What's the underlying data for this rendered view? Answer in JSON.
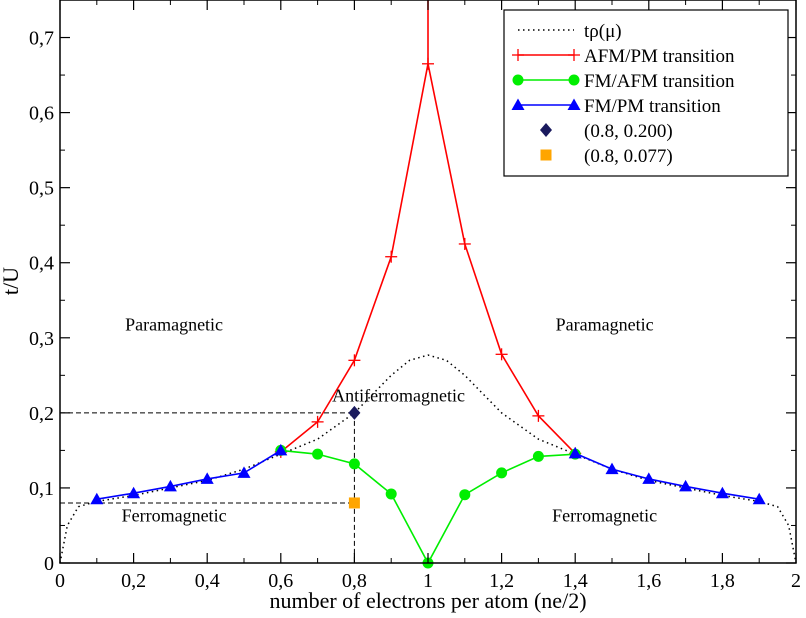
{
  "chart_data": {
    "type": "line",
    "title": "",
    "xlabel": "number of electrons per atom (ne/2)",
    "ylabel": "t/U",
    "xlim": [
      0,
      2
    ],
    "ylim": [
      0,
      0.75
    ],
    "xticks": [
      0,
      0.2,
      0.4,
      0.6,
      0.8,
      1,
      1.2,
      1.4,
      1.6,
      1.8,
      2
    ],
    "xtick_labels": [
      "0",
      "0,2",
      "0,4",
      "0,6",
      "0,8",
      "1",
      "1,2",
      "1,4",
      "1,6",
      "1,8",
      "2"
    ],
    "yticks": [
      0,
      0.1,
      0.2,
      0.3,
      0.4,
      0.5,
      0.6,
      0.7
    ],
    "ytick_labels": [
      "0",
      "0,1",
      "0,2",
      "0,3",
      "0,4",
      "0,5",
      "0,6",
      "0,7"
    ],
    "legend_position": "top-right",
    "series": [
      {
        "name": "tρ(μ)",
        "style": "dotted",
        "color": "#000000",
        "x": [
          0,
          0.02,
          0.05,
          0.1,
          0.2,
          0.3,
          0.4,
          0.5,
          0.6,
          0.7,
          0.8,
          0.85,
          0.9,
          0.95,
          1.0,
          1.05,
          1.1,
          1.15,
          1.2,
          1.3,
          1.4,
          1.5,
          1.6,
          1.7,
          1.8,
          1.9,
          1.95,
          1.98,
          2.0
        ],
        "y": [
          0,
          0.05,
          0.075,
          0.082,
          0.09,
          0.1,
          0.11,
          0.125,
          0.145,
          0.165,
          0.2,
          0.225,
          0.25,
          0.27,
          0.277,
          0.27,
          0.25,
          0.225,
          0.2,
          0.165,
          0.145,
          0.125,
          0.11,
          0.1,
          0.09,
          0.082,
          0.075,
          0.05,
          0
        ]
      },
      {
        "name": "AFM/PM transition",
        "style": "plus-markers",
        "color": "#ff0000",
        "x": [
          0.6,
          0.7,
          0.8,
          0.9,
          1.0,
          1.1,
          1.2,
          1.3,
          1.4
        ],
        "y": [
          0.148,
          0.188,
          0.27,
          0.408,
          0.665,
          0.425,
          0.278,
          0.196,
          0.146
        ],
        "cusp_top": 0.75
      },
      {
        "name": "FM/AFM transition",
        "style": "circle-markers",
        "color": "#00ee00",
        "x": [
          0.6,
          0.7,
          0.8,
          0.9,
          1.0,
          1.1,
          1.2,
          1.3,
          1.4
        ],
        "y": [
          0.15,
          0.145,
          0.132,
          0.092,
          0.0,
          0.091,
          0.12,
          0.142,
          0.145
        ]
      },
      {
        "name": "FM/PM transition",
        "style": "triangle-markers",
        "color": "#0000ff",
        "segments": [
          {
            "x": [
              0.1,
              0.2,
              0.3,
              0.4,
              0.5,
              0.6
            ],
            "y": [
              0.085,
              0.093,
              0.102,
              0.112,
              0.12,
              0.15
            ]
          },
          {
            "x": [
              1.4,
              1.5,
              1.6,
              1.7,
              1.8,
              1.9
            ],
            "y": [
              0.146,
              0.125,
              0.112,
              0.102,
              0.093,
              0.085
            ]
          }
        ]
      }
    ],
    "points": [
      {
        "name": "(0.8, 0.200)",
        "x": 0.8,
        "y": 0.2,
        "marker": "diamond",
        "color": "#1a1a5e"
      },
      {
        "name": "(0.8, 0.077)",
        "x": 0.8,
        "y": 0.08,
        "marker": "square",
        "color": "#ffa500"
      }
    ],
    "region_labels": [
      {
        "text": "Paramagnetic",
        "x": 0.31,
        "y": 0.31
      },
      {
        "text": "Paramagnetic",
        "x": 1.48,
        "y": 0.31
      },
      {
        "text": "Antiferromagnetic",
        "x": 0.92,
        "y": 0.215
      },
      {
        "text": "Ferromagnetic",
        "x": 0.31,
        "y": 0.055
      },
      {
        "text": "Ferromagnetic",
        "x": 1.48,
        "y": 0.055
      }
    ]
  }
}
